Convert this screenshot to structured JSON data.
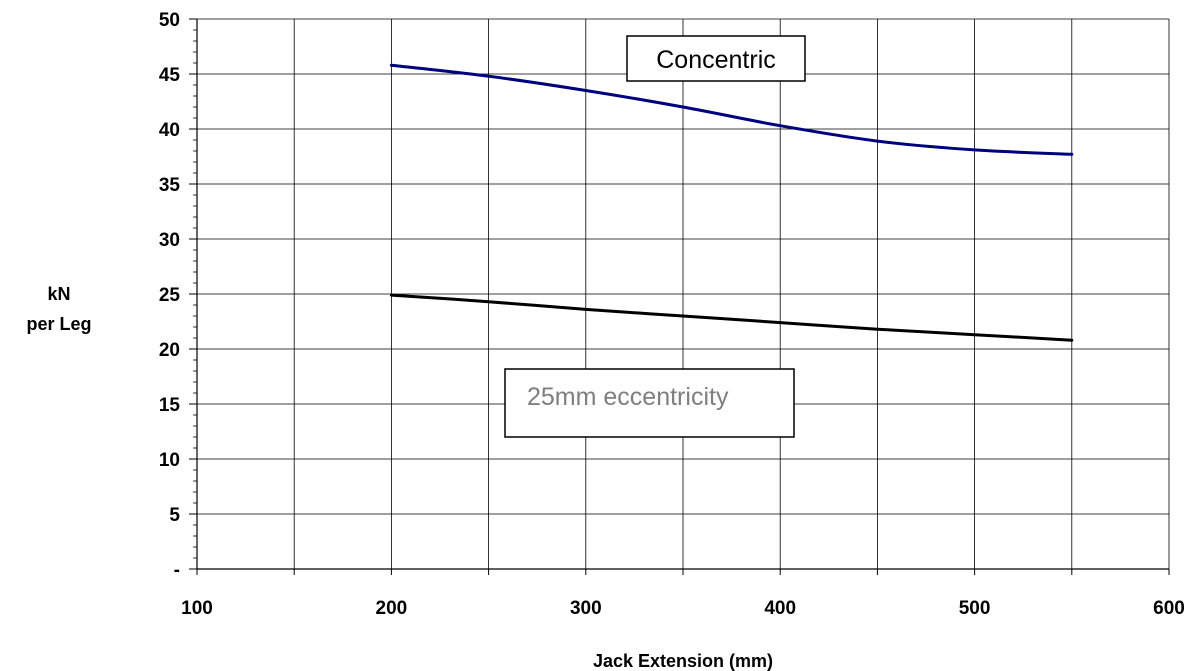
{
  "chart_data": {
    "type": "line",
    "title": "",
    "xlabel": "Jack Extension (mm)",
    "ylabel_lines": [
      "kN",
      "per Leg"
    ],
    "xlim": [
      100,
      600
    ],
    "ylim": [
      0,
      50
    ],
    "x_ticks": [
      100,
      150,
      200,
      250,
      300,
      350,
      400,
      450,
      500,
      550,
      600
    ],
    "x_tick_labels": [
      "100",
      "",
      "200",
      "",
      "300",
      "",
      "400",
      "",
      "500",
      "",
      "600"
    ],
    "y_ticks": [
      0,
      5,
      10,
      15,
      20,
      25,
      30,
      35,
      40,
      45,
      50
    ],
    "y_tick_labels": [
      "-",
      "5",
      "10",
      "15",
      "20",
      "25",
      "30",
      "35",
      "40",
      "45",
      "50"
    ],
    "grid": true,
    "series": [
      {
        "color": "#00007f",
        "x": [
          200,
          250,
          300,
          350,
          400,
          450,
          500,
          550
        ],
        "y": [
          45.8,
          44.8,
          43.5,
          42.0,
          40.3,
          38.9,
          38.1,
          37.7
        ]
      },
      {
        "color": "#000000",
        "x": [
          200,
          250,
          300,
          350,
          400,
          450,
          500,
          550
        ],
        "y": [
          24.9,
          24.3,
          23.6,
          23.0,
          22.4,
          21.8,
          21.3,
          20.8
        ]
      }
    ],
    "annotations": [
      {
        "text": "Concentric",
        "color": "#000000"
      },
      {
        "text": "25mm eccentricity",
        "color": "#7f7f7f"
      }
    ]
  }
}
